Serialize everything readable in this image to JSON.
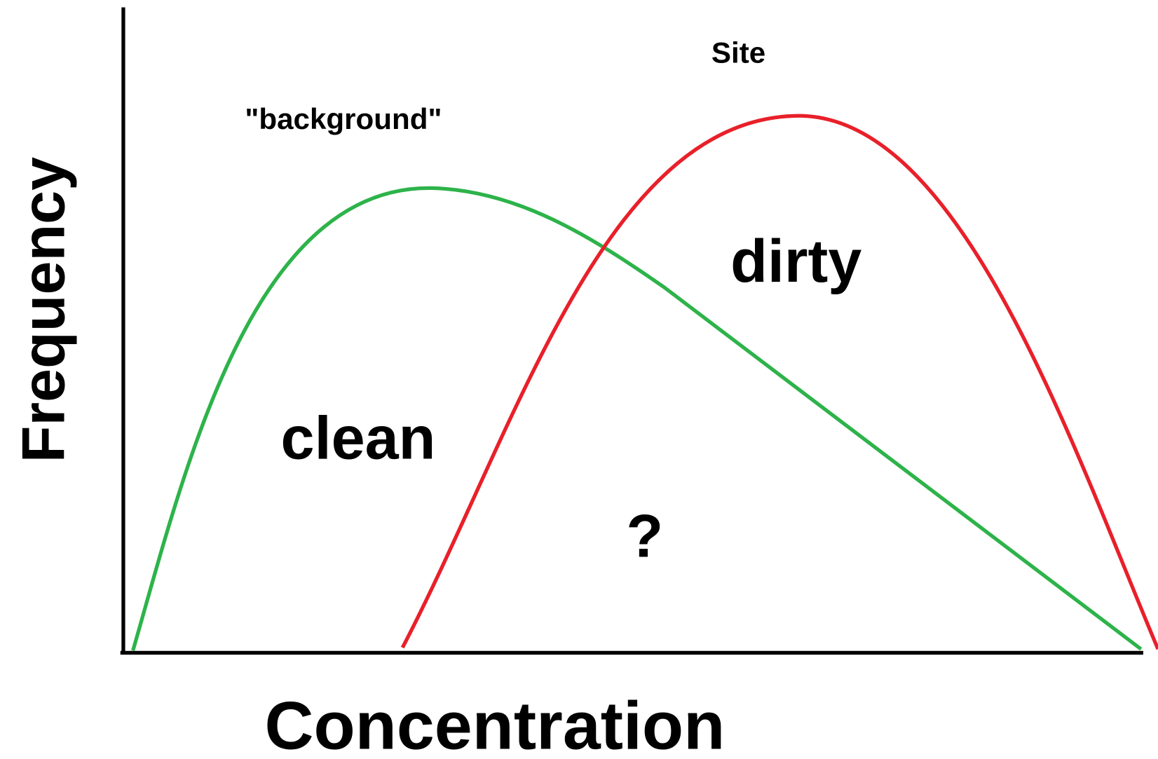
{
  "axes": {
    "y_label": "Frequency",
    "x_label": "Concentration"
  },
  "curves": [
    {
      "label": "\"background\""
    },
    {
      "label": "Site"
    }
  ],
  "regions": [
    {
      "label": "clean"
    },
    {
      "label": "dirty"
    },
    {
      "label": "?"
    }
  ]
}
